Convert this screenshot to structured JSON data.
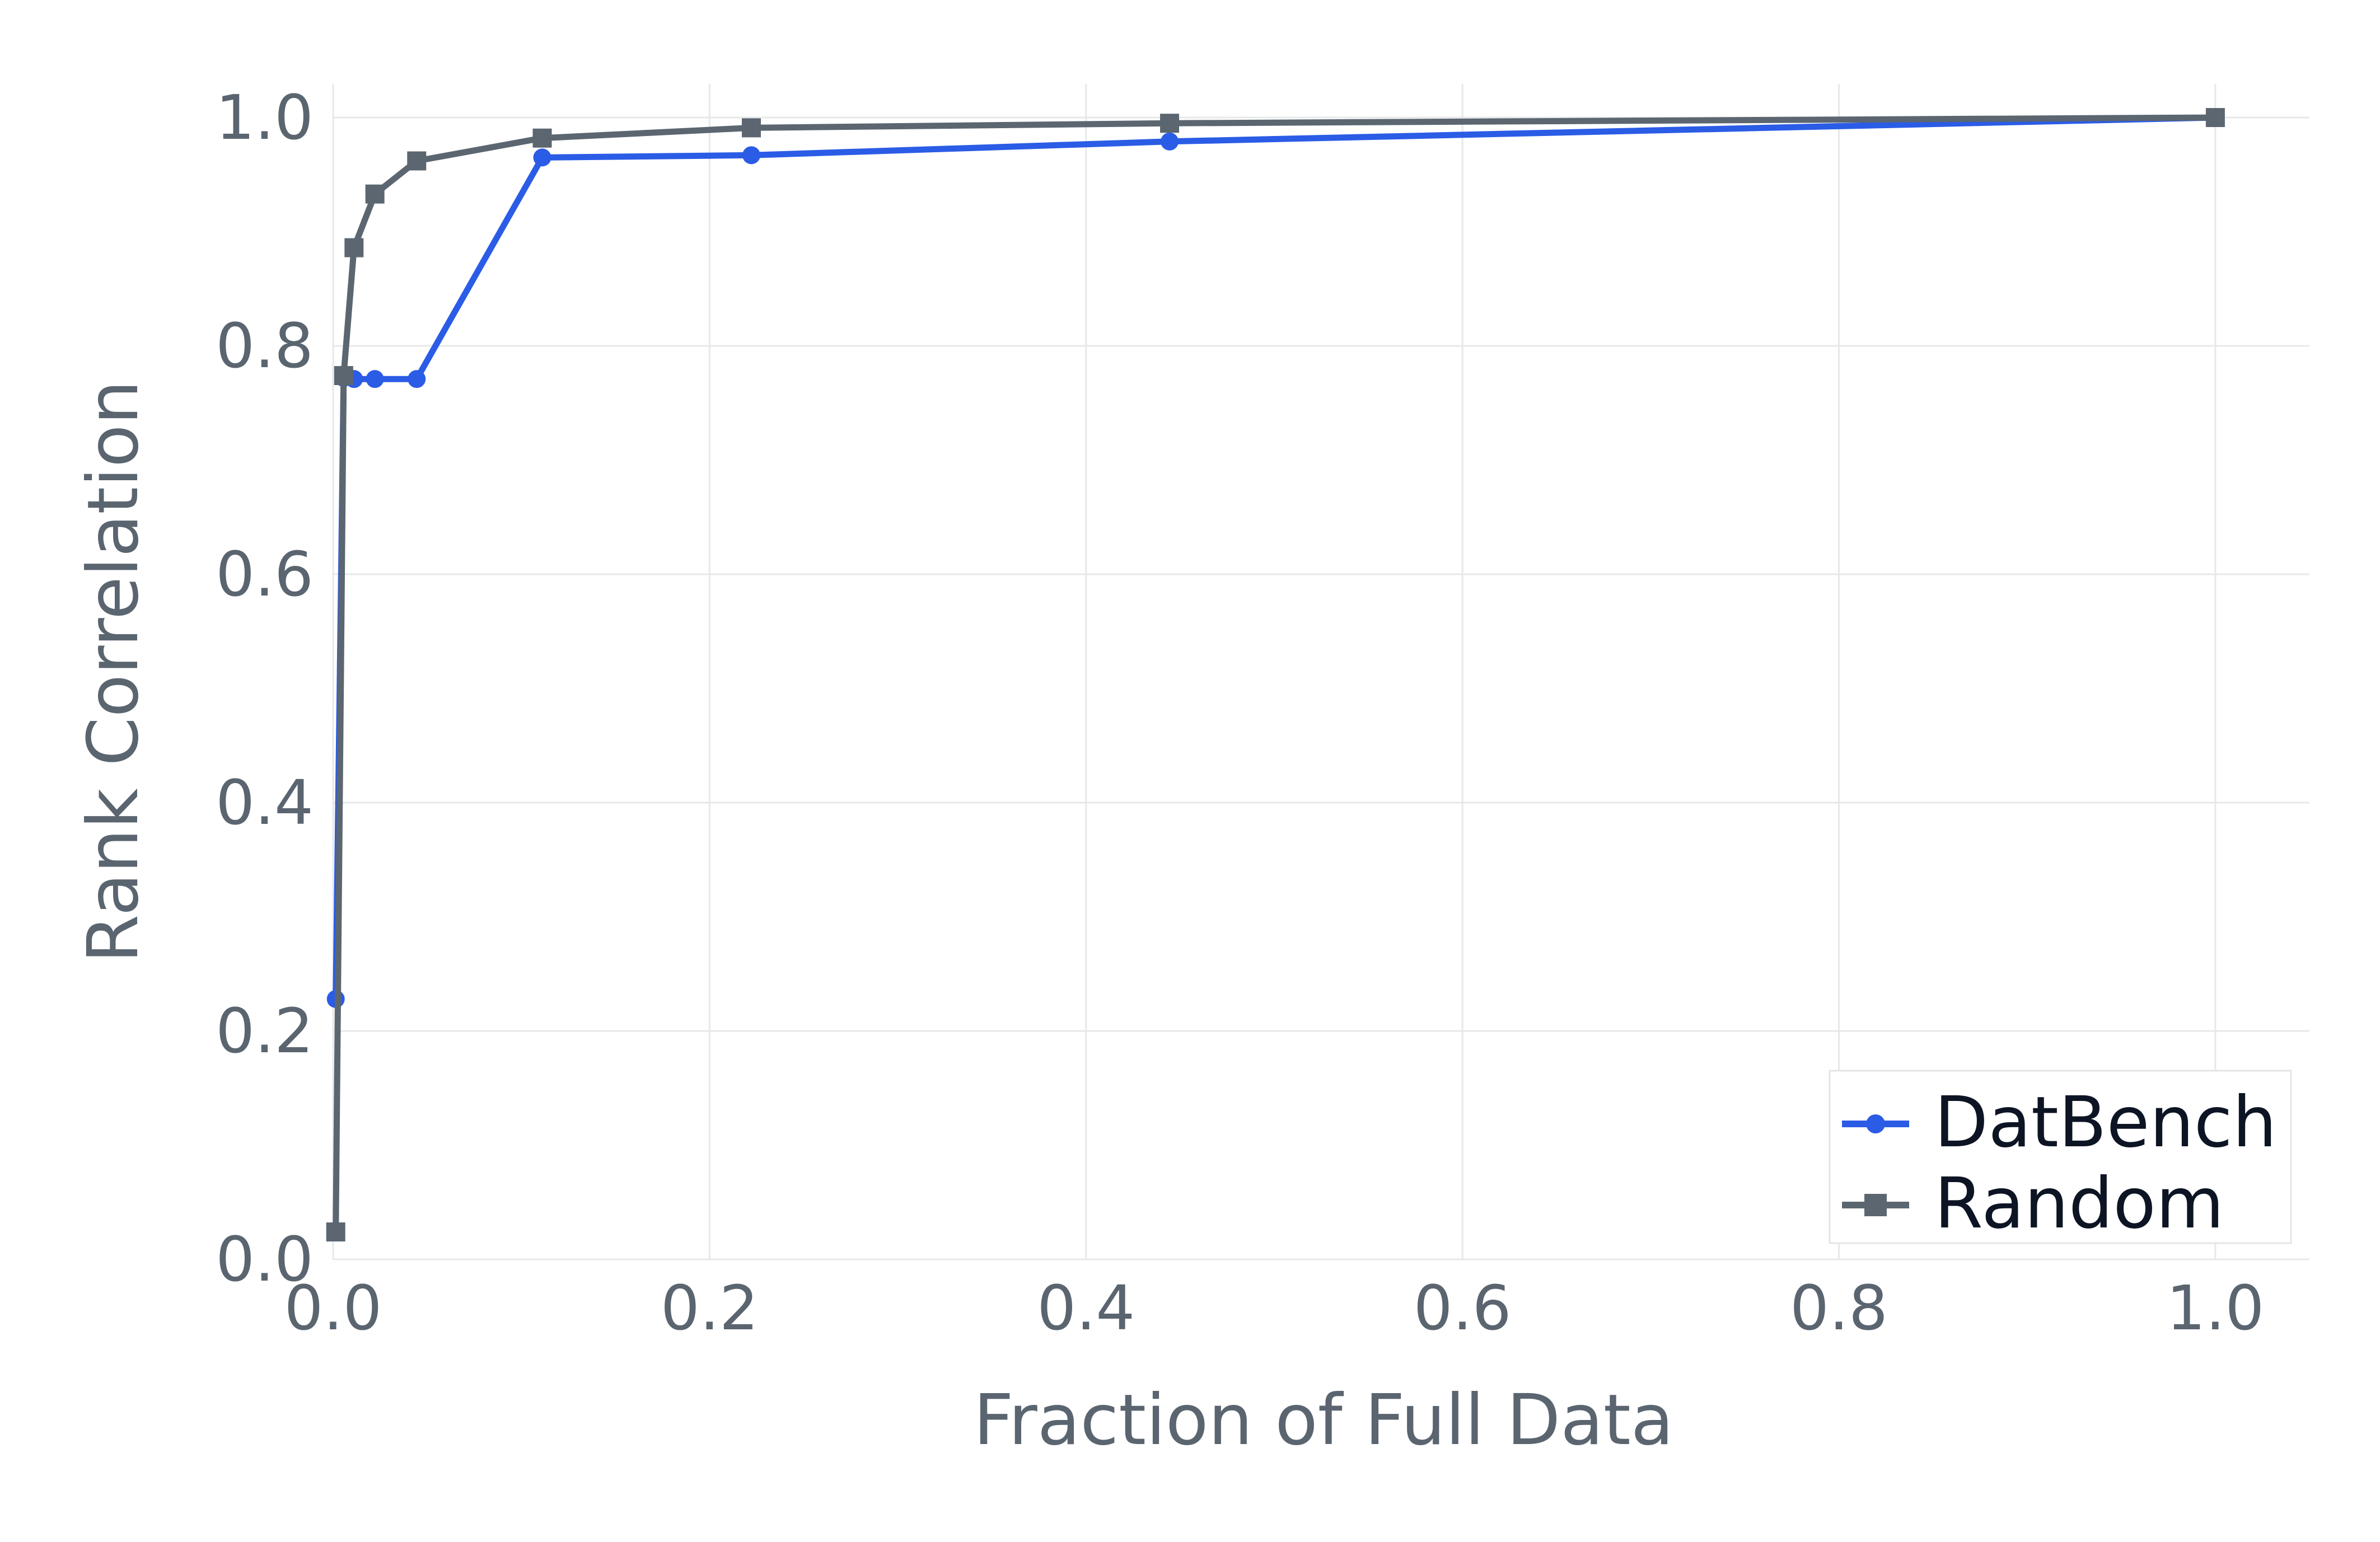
{
  "chart_data": {
    "type": "line",
    "xlabel": "Fraction of Full Data",
    "ylabel": "Rank Correlation",
    "xlim": [
      0,
      1.05
    ],
    "ylim": [
      0,
      1.0
    ],
    "x_ticks": [
      "0.0",
      "0.2",
      "0.4",
      "0.6",
      "0.8",
      "1.0"
    ],
    "y_ticks": [
      "0.0",
      "0.2",
      "0.4",
      "0.6",
      "0.8",
      "1.0"
    ],
    "grid": true,
    "legend_position": "bottom-right",
    "series": [
      {
        "name": "DatBench",
        "color": "#2b5ce6",
        "marker": "circle",
        "points": [
          {
            "x": 0.0014,
            "y": 0.228
          },
          {
            "x": 0.0056,
            "y": 0.772
          },
          {
            "x": 0.0111,
            "y": 0.771
          },
          {
            "x": 0.0222,
            "y": 0.771
          },
          {
            "x": 0.0444,
            "y": 0.771
          },
          {
            "x": 0.1111,
            "y": 0.965
          },
          {
            "x": 0.2222,
            "y": 0.967
          },
          {
            "x": 0.4444,
            "y": 0.979
          },
          {
            "x": 1.0,
            "y": 1.0
          }
        ]
      },
      {
        "name": "Random",
        "color": "#5b6670",
        "marker": "square",
        "points": [
          {
            "x": 0.0014,
            "y": 0.024
          },
          {
            "x": 0.0056,
            "y": 0.774
          },
          {
            "x": 0.0111,
            "y": 0.886
          },
          {
            "x": 0.0222,
            "y": 0.933
          },
          {
            "x": 0.0444,
            "y": 0.962
          },
          {
            "x": 0.1111,
            "y": 0.982
          },
          {
            "x": 0.2222,
            "y": 0.991
          },
          {
            "x": 0.4444,
            "y": 0.995
          },
          {
            "x": 1.0,
            "y": 1.0
          }
        ]
      }
    ]
  }
}
